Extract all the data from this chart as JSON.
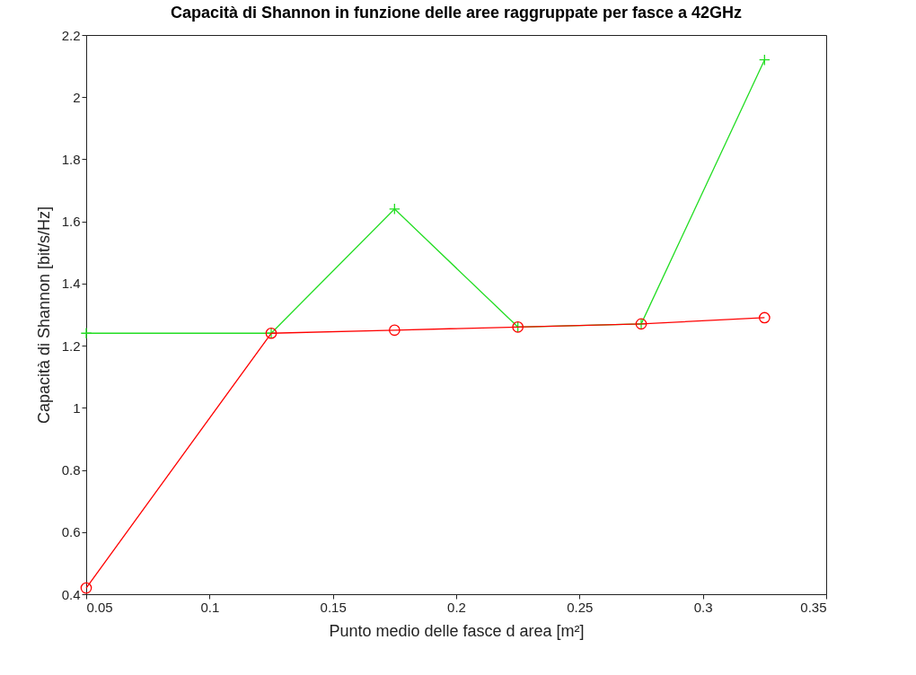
{
  "chart_data": {
    "type": "line",
    "title": "Capacità di Shannon in funzione delle aree raggruppate per fasce a 42GHz",
    "xlabel": "Punto medio delle fasce d area [m²]",
    "ylabel": "Capacità di Shannon [bit/s/Hz]",
    "x": [
      0.05,
      0.125,
      0.175,
      0.225,
      0.275,
      0.325
    ],
    "series": [
      {
        "color": "#22dd22",
        "marker": "cross",
        "values": [
          1.24,
          1.24,
          1.64,
          1.26,
          1.27,
          2.12
        ]
      },
      {
        "color": "#ff0000",
        "marker": "circle",
        "values": [
          0.42,
          1.24,
          1.25,
          1.26,
          1.27,
          1.29
        ]
      }
    ],
    "xlim": [
      0.05,
      0.35
    ],
    "xticks": [
      0.05,
      0.1,
      0.15,
      0.2,
      0.25,
      0.3,
      0.35
    ],
    "ylim": [
      0.4,
      2.2
    ],
    "yticks": [
      0.4,
      0.6,
      0.8,
      1,
      1.2,
      1.4,
      1.6,
      1.8,
      2,
      2.2
    ],
    "grid": false,
    "line_style": "solid"
  }
}
